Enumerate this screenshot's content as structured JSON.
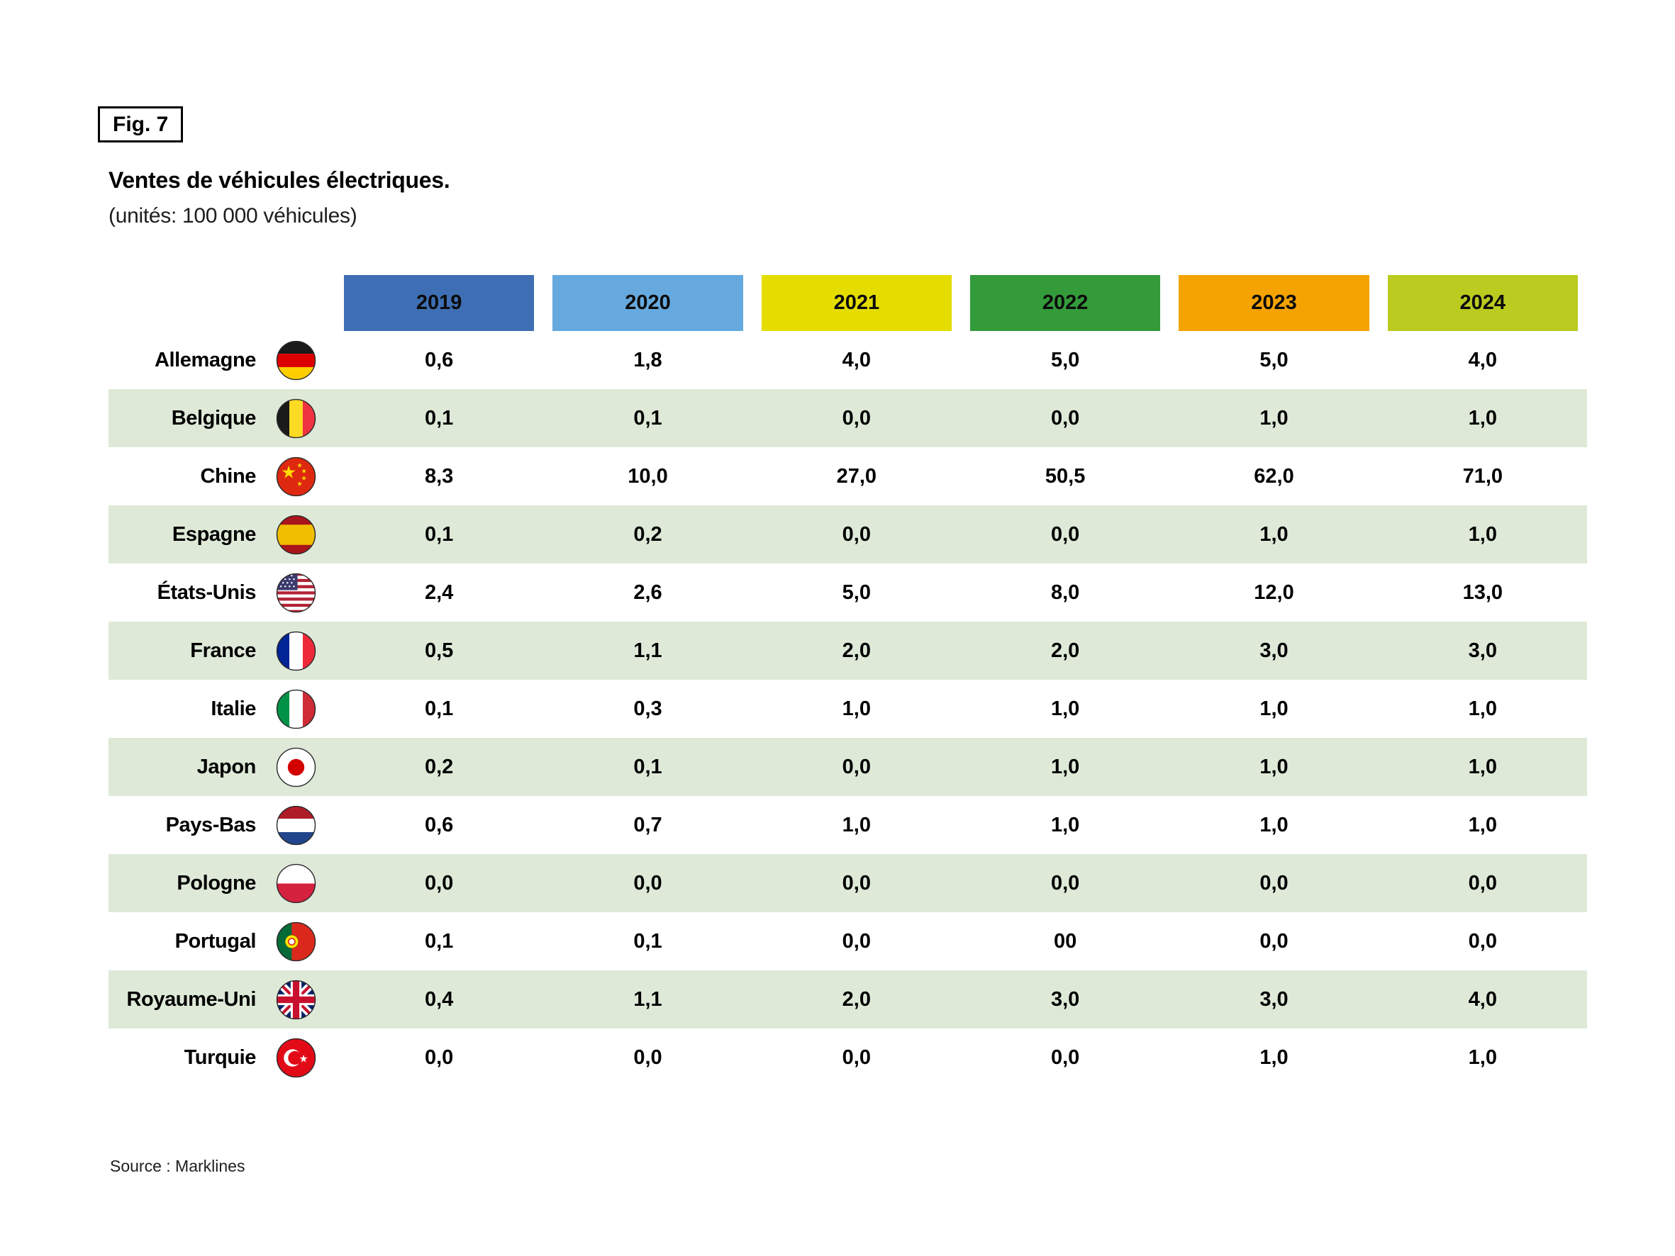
{
  "figure": {
    "fig_label": "Fig. 7",
    "title": "Ventes de véhicules électriques.",
    "subtitle": "(unités: 100 000 véhicules)",
    "source": "Source : Marklines"
  },
  "chart_data": {
    "type": "table",
    "title": "Ventes de véhicules électriques.",
    "unit": "100 000 véhicules",
    "columns": [
      "2019",
      "2020",
      "2021",
      "2022",
      "2023",
      "2024"
    ],
    "column_colors": [
      "#3E6FB4",
      "#66A9DE",
      "#E5DD00",
      "#349B3B",
      "#F5A303",
      "#BBCB20"
    ],
    "row_alt_color": "#DEE9D8",
    "rows": [
      {
        "country": "Allemagne",
        "flag": "germany-flag-icon",
        "values": [
          "0,6",
          "1,8",
          "4,0",
          "5,0",
          "5,0",
          "4,0"
        ]
      },
      {
        "country": "Belgique",
        "flag": "belgium-flag-icon",
        "values": [
          "0,1",
          "0,1",
          "0,0",
          "0,0",
          "1,0",
          "1,0"
        ]
      },
      {
        "country": "Chine",
        "flag": "china-flag-icon",
        "values": [
          "8,3",
          "10,0",
          "27,0",
          "50,5",
          "62,0",
          "71,0"
        ]
      },
      {
        "country": "Espagne",
        "flag": "spain-flag-icon",
        "values": [
          "0,1",
          "0,2",
          "0,0",
          "0,0",
          "1,0",
          "1,0"
        ]
      },
      {
        "country": "États-Unis",
        "flag": "usa-flag-icon",
        "values": [
          "2,4",
          "2,6",
          "5,0",
          "8,0",
          "12,0",
          "13,0"
        ]
      },
      {
        "country": "France",
        "flag": "france-flag-icon",
        "values": [
          "0,5",
          "1,1",
          "2,0",
          "2,0",
          "3,0",
          "3,0"
        ]
      },
      {
        "country": "Italie",
        "flag": "italy-flag-icon",
        "values": [
          "0,1",
          "0,3",
          "1,0",
          "1,0",
          "1,0",
          "1,0"
        ]
      },
      {
        "country": "Japon",
        "flag": "japan-flag-icon",
        "values": [
          "0,2",
          "0,1",
          "0,0",
          "1,0",
          "1,0",
          "1,0"
        ]
      },
      {
        "country": "Pays-Bas",
        "flag": "netherlands-flag-icon",
        "values": [
          "0,6",
          "0,7",
          "1,0",
          "1,0",
          "1,0",
          "1,0"
        ]
      },
      {
        "country": "Pologne",
        "flag": "poland-flag-icon",
        "values": [
          "0,0",
          "0,0",
          "0,0",
          "0,0",
          "0,0",
          "0,0"
        ]
      },
      {
        "country": "Portugal",
        "flag": "portugal-flag-icon",
        "values": [
          "0,1",
          "0,1",
          "0,0",
          "00",
          "0,0",
          "0,0"
        ]
      },
      {
        "country": "Royaume-Uni",
        "flag": "uk-flag-icon",
        "values": [
          "0,4",
          "1,1",
          "2,0",
          "3,0",
          "3,0",
          "4,0"
        ]
      },
      {
        "country": "Turquie",
        "flag": "turkey-flag-icon",
        "values": [
          "0,0",
          "0,0",
          "0,0",
          "0,0",
          "1,0",
          "1,0"
        ]
      }
    ]
  }
}
